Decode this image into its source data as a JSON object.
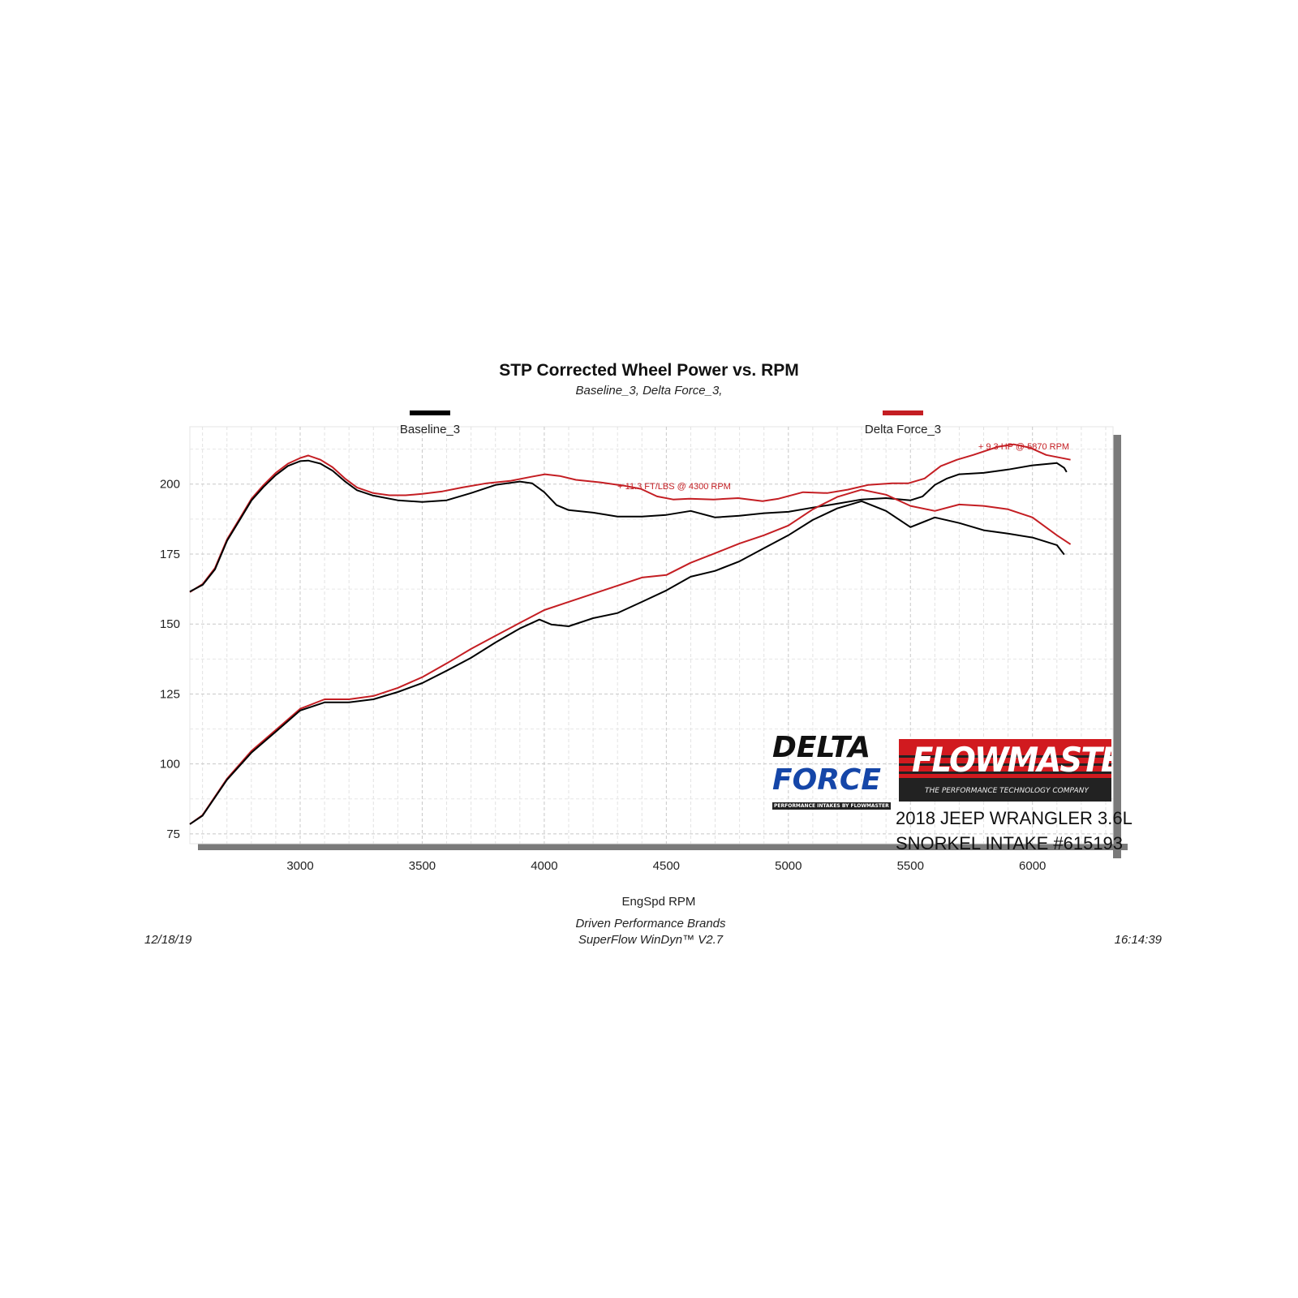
{
  "chart_data": {
    "type": "line",
    "title": "STP Corrected Wheel Power vs. RPM",
    "subtitle": "Baseline_3, Delta Force_3,",
    "xlabel": "EngSpd  RPM",
    "ylabel": "",
    "xlim": [
      2548,
      6330
    ],
    "ylim": [
      71.5,
      220.5
    ],
    "xticks": [
      3000,
      3500,
      4000,
      4500,
      5000,
      5500,
      6000
    ],
    "yticks": [
      75,
      100,
      125,
      150,
      175,
      200
    ],
    "grid": true,
    "legend_placement": "top",
    "legend": [
      {
        "name": "Baseline_3",
        "color": "#000000"
      },
      {
        "name": "Delta Force_3",
        "color": "#c41e23"
      }
    ],
    "annotations": [
      {
        "text": "+ 11.3 FT/LBS @ 4300 RPM",
        "color": "#c41e23"
      },
      {
        "text": "+ 9.3 HP @ 5870 RPM",
        "color": "#c41e23"
      }
    ],
    "series": [
      {
        "name": "Delta Force_3",
        "color": "#c41e23",
        "x": [
          2548,
          2601,
          2651,
          2701,
          2751,
          2801,
          2850,
          2900,
          2950,
          3000,
          3033,
          3083,
          3133,
          3183,
          3233,
          3299,
          3365,
          3432,
          3500,
          3583,
          3664,
          3764,
          3864,
          3947,
          4003,
          4063,
          4130,
          4230,
          4329,
          4396,
          4462,
          4528,
          4595,
          4694,
          4794,
          4894,
          4960,
          5060,
          5159,
          5243,
          5326,
          5425,
          5492,
          5558,
          5624,
          5691,
          5757,
          5857,
          5923,
          5990,
          6056,
          6156
        ],
        "y": [
          161.4,
          164.3,
          170,
          180.3,
          187.5,
          194.8,
          199.7,
          204,
          207.3,
          209.3,
          210.2,
          208.7,
          206,
          202,
          198.8,
          196.8,
          196,
          196,
          196.5,
          197.4,
          198.8,
          200.3,
          201.2,
          202.6,
          203.5,
          202.9,
          201.5,
          200.6,
          199.4,
          198.3,
          195.6,
          194.5,
          194.8,
          194.5,
          195,
          193.9,
          194.8,
          197.1,
          196.8,
          198,
          199.7,
          200.3,
          200.3,
          202,
          206.4,
          208.7,
          210.4,
          213.3,
          214.2,
          213,
          210.4,
          208.7
        ]
      },
      {
        "name": "Baseline_3",
        "color": "#000000",
        "x": [
          2548,
          2601,
          2651,
          2701,
          2751,
          2801,
          2850,
          2900,
          2950,
          3000,
          3033,
          3083,
          3133,
          3183,
          3233,
          3299,
          3400,
          3500,
          3600,
          3700,
          3800,
          3900,
          3950,
          4000,
          4050,
          4100,
          4200,
          4300,
          4400,
          4500,
          4600,
          4700,
          4800,
          4900,
          5000,
          5100,
          5200,
          5300,
          5400,
          5500,
          5550,
          5600,
          5650,
          5700,
          5800,
          5900,
          6000,
          6100,
          6130,
          6140
        ],
        "y": [
          161.6,
          164,
          169.5,
          179.8,
          187,
          194.2,
          199,
          203.2,
          206.5,
          208.2,
          208.4,
          207.3,
          204.8,
          201,
          197.8,
          195.9,
          194.2,
          193.6,
          194.2,
          196.8,
          199.7,
          200.9,
          200.3,
          197.1,
          192.5,
          190.7,
          189.8,
          188.4,
          188.4,
          189,
          190.4,
          188.1,
          188.7,
          189.6,
          190.1,
          191.6,
          193,
          194.5,
          195,
          194.2,
          195.6,
          199.7,
          202,
          203.5,
          204,
          205.2,
          206.7,
          207.5,
          205.8,
          204.3
        ]
      },
      {
        "name": "Delta Force_3",
        "color": "#c41e23",
        "x": [
          2548,
          2600,
          2700,
          2800,
          2900,
          3000,
          3100,
          3200,
          3300,
          3400,
          3500,
          3600,
          3700,
          3800,
          3900,
          4000,
          4100,
          4200,
          4300,
          4400,
          4500,
          4600,
          4700,
          4800,
          4900,
          5000,
          5100,
          5200,
          5300,
          5400,
          5500,
          5600,
          5700,
          5800,
          5900,
          6000,
          6100,
          6156
        ],
        "y": [
          78.5,
          81.7,
          94.7,
          104.6,
          112.1,
          119.7,
          123.1,
          123.1,
          124.3,
          127.2,
          131,
          135.9,
          141.1,
          145.8,
          150.4,
          155,
          157.9,
          160.8,
          163.7,
          166.6,
          167.5,
          171.9,
          175.3,
          178.8,
          181.7,
          185.2,
          191,
          195.4,
          198,
          196.2,
          192.2,
          190.4,
          192.7,
          192.2,
          191,
          188.1,
          181.7,
          178.5
        ]
      },
      {
        "name": "Baseline_3",
        "color": "#000000",
        "x": [
          2548,
          2600,
          2700,
          2800,
          2900,
          3000,
          3100,
          3200,
          3300,
          3400,
          3500,
          3600,
          3700,
          3800,
          3900,
          3980,
          4030,
          4100,
          4200,
          4300,
          4400,
          4500,
          4600,
          4700,
          4800,
          4900,
          5000,
          5100,
          5200,
          5300,
          5400,
          5500,
          5600,
          5700,
          5800,
          5900,
          6000,
          6100,
          6130
        ],
        "y": [
          78.5,
          81.5,
          94.3,
          104,
          111.5,
          119.1,
          122,
          122,
          123.1,
          125.7,
          128.9,
          133.3,
          137.9,
          143.4,
          148.4,
          151.6,
          149.8,
          149.2,
          152.1,
          153.9,
          157.9,
          162,
          166.9,
          169,
          172.4,
          177.1,
          181.7,
          187.2,
          191.3,
          193.9,
          190.4,
          184.6,
          188.1,
          186.1,
          183.5,
          182.3,
          180.9,
          178.2,
          174.8
        ]
      }
    ]
  },
  "footer": {
    "date": "12/18/19",
    "company": "Driven Performance Brands",
    "software": "SuperFlow WinDyn™  V2.7",
    "time": "16:14:39"
  },
  "branding": {
    "delta_force_line1": "DELTA",
    "delta_force_line2": "FORCE",
    "delta_force_tagline": "PERFORMANCE INTAKES BY FLOWMASTER",
    "flowmaster_name": "FLOWMASTER",
    "flowmaster_tagline": "THE PERFORMANCE TECHNOLOGY COMPANY",
    "vehicle_line1": "2018 JEEP WRANGLER 3.6L",
    "vehicle_line2": "SNORKEL INTAKE #615193"
  }
}
